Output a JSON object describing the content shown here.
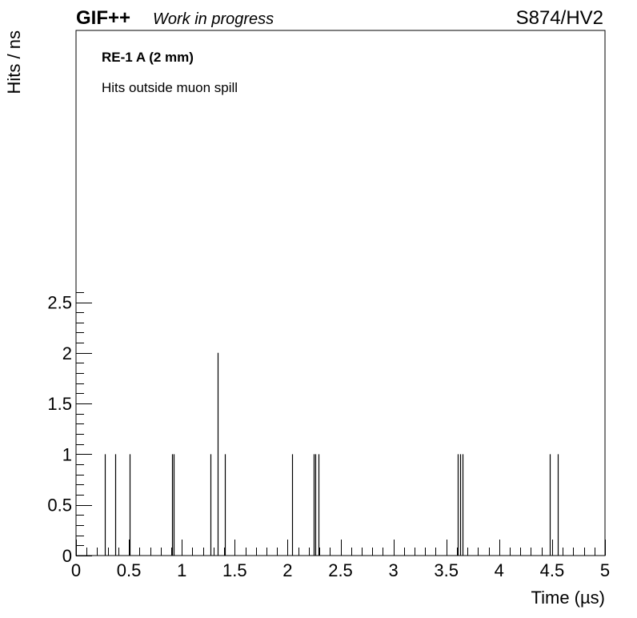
{
  "header": {
    "experiment": "GIF++",
    "status": "Work in progress",
    "run": "S874/HV2"
  },
  "annotations": {
    "chamber": "RE-1 A (2 mm)",
    "note": "Hits outside muon spill"
  },
  "chart_data": {
    "type": "bar",
    "style": "histogram-spikes",
    "xlabel": "Time (µs)",
    "ylabel": "Hits / ns",
    "xlim": [
      0,
      5
    ],
    "ylim": [
      0,
      2.6
    ],
    "x_ticks": [
      0,
      0.5,
      1,
      1.5,
      2,
      2.5,
      3,
      3.5,
      4,
      4.5,
      5
    ],
    "x_tick_labels": [
      "0",
      "0.5",
      "1",
      "1.5",
      "2",
      "2.5",
      "3",
      "3.5",
      "4",
      "4.5",
      "5"
    ],
    "y_ticks": [
      0,
      0.5,
      1,
      1.5,
      2,
      2.5
    ],
    "y_tick_labels": [
      "0",
      "0.5",
      "1",
      "1.5",
      "2",
      "2.5"
    ],
    "grid": false,
    "series": [
      {
        "x": [
          0.27,
          0.37,
          0.51,
          0.91,
          0.92,
          1.27,
          1.34,
          1.41,
          2.04,
          2.25,
          2.26,
          2.29,
          3.61,
          3.63,
          3.65,
          4.48,
          4.55
        ],
        "values": [
          1,
          1,
          1,
          1,
          1,
          1,
          2,
          1,
          1,
          1,
          1,
          1,
          1,
          1,
          1,
          1,
          1
        ]
      }
    ]
  }
}
